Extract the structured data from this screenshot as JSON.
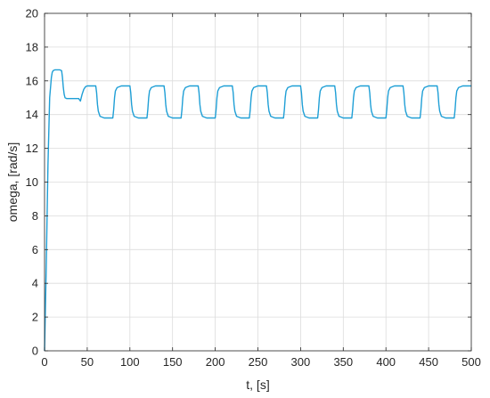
{
  "chart_data": {
    "type": "line",
    "title": "",
    "xlabel": "t, [s]",
    "ylabel": "omega, [rad/s]",
    "xlim": [
      0,
      500
    ],
    "ylim": [
      0,
      20
    ],
    "xticks": [
      0,
      50,
      100,
      150,
      200,
      250,
      300,
      350,
      400,
      450,
      500
    ],
    "yticks": [
      0,
      2,
      4,
      6,
      8,
      10,
      12,
      14,
      16,
      18,
      20
    ],
    "grid": true,
    "box": true,
    "series": [
      {
        "color": "#1f9fd6",
        "x": [
          0,
          2,
          4,
          6,
          8,
          9,
          10,
          12,
          14,
          16,
          18,
          20,
          21,
          22,
          23,
          24,
          26,
          28,
          30,
          35,
          40,
          42,
          44,
          46,
          48,
          50,
          55,
          60,
          61,
          62,
          63,
          65,
          70,
          75,
          80,
          81,
          82,
          83,
          85,
          90,
          95,
          100,
          101,
          102,
          103,
          105,
          110,
          115,
          120,
          121,
          122,
          123,
          125,
          130,
          135,
          140,
          141,
          142,
          143,
          145,
          150,
          155,
          160,
          161,
          162,
          163,
          165,
          170,
          175,
          180,
          181,
          182,
          183,
          185,
          190,
          195,
          200,
          201,
          202,
          203,
          205,
          210,
          215,
          220,
          221,
          222,
          223,
          225,
          230,
          235,
          240,
          241,
          242,
          243,
          245,
          250,
          255,
          260,
          261,
          262,
          263,
          265,
          270,
          275,
          280,
          281,
          282,
          283,
          285,
          290,
          295,
          300,
          301,
          302,
          303,
          305,
          310,
          315,
          320,
          321,
          322,
          323,
          325,
          330,
          335,
          340,
          341,
          342,
          343,
          345,
          350,
          355,
          360,
          361,
          362,
          363,
          365,
          370,
          375,
          380,
          381,
          382,
          383,
          385,
          390,
          395,
          400,
          401,
          402,
          403,
          405,
          410,
          415,
          420,
          421,
          422,
          423,
          425,
          430,
          435,
          440,
          441,
          442,
          443,
          445,
          450,
          455,
          460,
          461,
          462,
          463,
          465,
          470,
          475,
          480,
          481,
          482,
          483,
          485,
          490,
          495,
          500
        ],
        "y": [
          0,
          5,
          11,
          15,
          16.2,
          16.5,
          16.6,
          16.65,
          16.65,
          16.65,
          16.65,
          16.6,
          16.2,
          15.6,
          15.2,
          15.0,
          14.95,
          14.95,
          14.95,
          14.95,
          14.95,
          14.8,
          15.2,
          15.5,
          15.65,
          15.7,
          15.7,
          15.7,
          15.3,
          14.6,
          14.2,
          13.9,
          13.8,
          13.8,
          13.8,
          14.3,
          15.0,
          15.4,
          15.6,
          15.7,
          15.7,
          15.7,
          15.3,
          14.6,
          14.2,
          13.9,
          13.8,
          13.8,
          13.8,
          14.3,
          15.0,
          15.4,
          15.6,
          15.7,
          15.7,
          15.7,
          15.3,
          14.6,
          14.2,
          13.9,
          13.8,
          13.8,
          13.8,
          14.3,
          15.0,
          15.4,
          15.6,
          15.7,
          15.7,
          15.7,
          15.3,
          14.6,
          14.2,
          13.9,
          13.8,
          13.8,
          13.8,
          14.3,
          15.0,
          15.4,
          15.6,
          15.7,
          15.7,
          15.7,
          15.3,
          14.6,
          14.2,
          13.9,
          13.8,
          13.8,
          13.8,
          14.3,
          15.0,
          15.4,
          15.6,
          15.7,
          15.7,
          15.7,
          15.3,
          14.6,
          14.2,
          13.9,
          13.8,
          13.8,
          13.8,
          14.3,
          15.0,
          15.4,
          15.6,
          15.7,
          15.7,
          15.7,
          15.3,
          14.6,
          14.2,
          13.9,
          13.8,
          13.8,
          13.8,
          14.3,
          15.0,
          15.4,
          15.6,
          15.7,
          15.7,
          15.7,
          15.3,
          14.6,
          14.2,
          13.9,
          13.8,
          13.8,
          13.8,
          14.3,
          15.0,
          15.4,
          15.6,
          15.7,
          15.7,
          15.7,
          15.3,
          14.6,
          14.2,
          13.9,
          13.8,
          13.8,
          13.8,
          14.3,
          15.0,
          15.4,
          15.6,
          15.7,
          15.7,
          15.7,
          15.3,
          14.6,
          14.2,
          13.9,
          13.8,
          13.8,
          13.8,
          14.3,
          15.0,
          15.4,
          15.6,
          15.7,
          15.7,
          15.7,
          15.3,
          14.6,
          14.2,
          13.9,
          13.8,
          13.8,
          13.8,
          14.3,
          15.0,
          15.4,
          15.6,
          15.7,
          15.7,
          15.7
        ]
      }
    ]
  }
}
